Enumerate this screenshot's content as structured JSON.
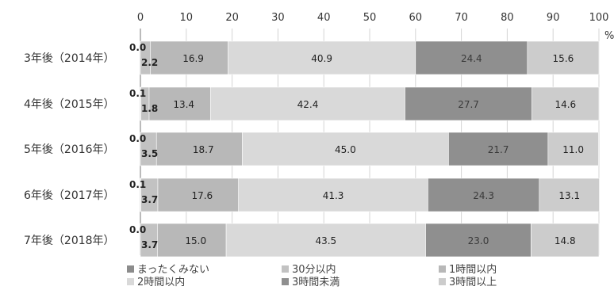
{
  "chart_data": {
    "type": "bar",
    "orientation": "horizontal",
    "stacked": true,
    "categories": [
      "3年後（2014年）",
      "4年後（2015年）",
      "5年後（2016年）",
      "6年後（2017年）",
      "7年後（2018年）"
    ],
    "series": [
      {
        "name": "まったくみない",
        "values": [
          0.0,
          0.1,
          0.0,
          0.1,
          0.0
        ],
        "color": "#8c8c8c"
      },
      {
        "name": "30分以内",
        "values": [
          2.2,
          1.8,
          3.5,
          3.7,
          3.7
        ],
        "color": "#c2c2c2"
      },
      {
        "name": "1時間以内",
        "values": [
          16.9,
          13.4,
          18.7,
          17.6,
          15.0
        ],
        "color": "#b8b8b8"
      },
      {
        "name": "2時間以内",
        "values": [
          40.9,
          42.4,
          45.0,
          41.3,
          43.5
        ],
        "color": "#d9d9d9"
      },
      {
        "name": "3時間未満",
        "values": [
          24.4,
          27.7,
          21.7,
          24.3,
          23.0
        ],
        "color": "#8f8f8f"
      },
      {
        "name": "3時間以上",
        "values": [
          15.6,
          14.6,
          11.0,
          13.1,
          14.8
        ],
        "color": "#cccccc"
      }
    ],
    "xlim": [
      0,
      100
    ],
    "xticks": [
      0,
      10,
      20,
      30,
      40,
      50,
      60,
      70,
      80,
      90,
      100
    ],
    "x_unit": "%",
    "xaxis_position": "top",
    "grid": true,
    "legend_position": "bottom"
  }
}
